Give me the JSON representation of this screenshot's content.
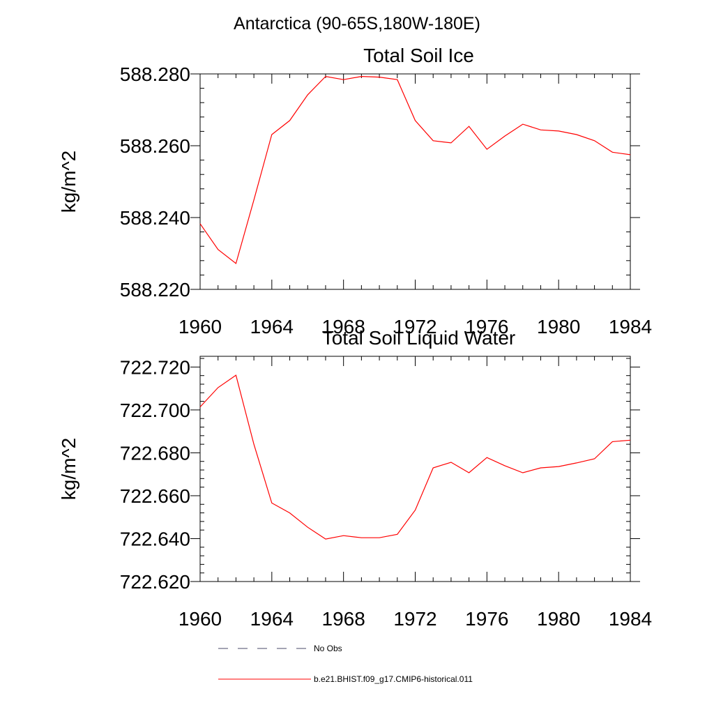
{
  "figure": {
    "title": "Antarctica (90-65S,180W-180E)"
  },
  "legend": {
    "placement": "bottom",
    "entries": [
      {
        "label": "No Obs",
        "style": "dashed",
        "color": "#4a4a6a"
      },
      {
        "label": "b.e21.BHIST.f09_g17.CMIP6-historical.011",
        "style": "solid",
        "color": "#ff0000"
      }
    ]
  },
  "chart_data": [
    {
      "type": "line",
      "title": "Total Soil Ice",
      "xlabel": "",
      "ylabel": "kg/m^2",
      "xlim": [
        1960,
        1984
      ],
      "ylim": [
        588.22,
        588.28
      ],
      "x_ticks": [
        1960,
        1964,
        1968,
        1972,
        1976,
        1980,
        1984
      ],
      "x_tick_labels": [
        "1960",
        "1964",
        "1968",
        "1972",
        "1976",
        "1980",
        "1984"
      ],
      "y_ticks": [
        588.22,
        588.24,
        588.26,
        588.28
      ],
      "y_tick_labels": [
        "588.220",
        "588.240",
        "588.260",
        "588.280"
      ],
      "grid": false,
      "x": [
        1960,
        1961,
        1962,
        1963,
        1964,
        1965,
        1966,
        1967,
        1968,
        1969,
        1970,
        1971,
        1972,
        1973,
        1974,
        1975,
        1976,
        1977,
        1978,
        1979,
        1980,
        1981,
        1982,
        1983,
        1984
      ],
      "series": [
        {
          "color": "#ff0000",
          "values": [
            588.2383,
            588.2311,
            588.2272,
            588.2449,
            588.2631,
            588.267,
            588.2742,
            588.2793,
            588.2784,
            588.2793,
            588.2791,
            588.2784,
            588.267,
            588.2614,
            588.2608,
            588.2654,
            588.259,
            588.2627,
            588.266,
            588.2644,
            588.2641,
            588.2631,
            588.2614,
            588.2582,
            588.2575
          ]
        }
      ]
    },
    {
      "type": "line",
      "title": "Total Soil Liquid Water",
      "xlabel": "",
      "ylabel": "kg/m^2",
      "xlim": [
        1960,
        1984
      ],
      "ylim": [
        722.62,
        722.725
      ],
      "x_ticks": [
        1960,
        1964,
        1968,
        1972,
        1976,
        1980,
        1984
      ],
      "x_tick_labels": [
        "1960",
        "1964",
        "1968",
        "1972",
        "1976",
        "1980",
        "1984"
      ],
      "y_ticks": [
        722.62,
        722.64,
        722.66,
        722.68,
        722.7,
        722.72
      ],
      "y_tick_labels": [
        "722.620",
        "722.640",
        "722.660",
        "722.680",
        "722.700",
        "722.720"
      ],
      "grid": false,
      "x": [
        1960,
        1961,
        1962,
        1963,
        1964,
        1965,
        1966,
        1967,
        1968,
        1969,
        1970,
        1971,
        1972,
        1973,
        1974,
        1975,
        1976,
        1977,
        1978,
        1979,
        1980,
        1981,
        1982,
        1983,
        1984
      ],
      "series": [
        {
          "color": "#ff0000",
          "values": [
            722.7014,
            722.7104,
            722.7162,
            722.684,
            722.6566,
            722.652,
            722.6453,
            722.6398,
            722.6414,
            722.6404,
            722.6404,
            722.642,
            722.6533,
            722.673,
            722.6756,
            722.6707,
            722.6778,
            722.674,
            722.6707,
            722.673,
            722.6736,
            722.6753,
            722.6772,
            722.6852,
            722.6859
          ]
        }
      ]
    }
  ]
}
